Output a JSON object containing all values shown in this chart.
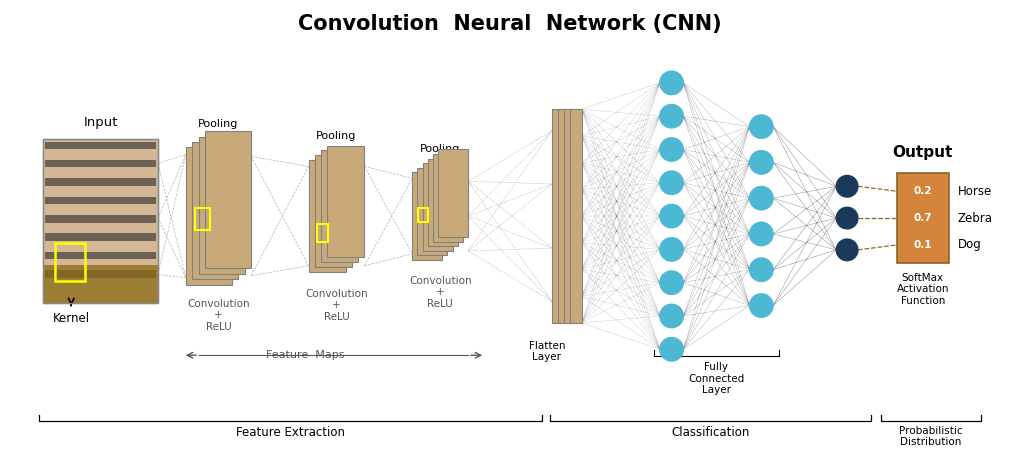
{
  "title": "Convolution  Neural  Network (CNN)",
  "title_fontsize": 15,
  "title_fontweight": "bold",
  "background_color": "#ffffff",
  "tan_color": "#c8a97a",
  "tan_dark": "#a8855a",
  "yellow_color": "#ffff00",
  "cyan_color": "#4db8d4",
  "dark_blue": "#1a3a5c",
  "orange_color": "#d4833a",
  "layer_labels": [
    "Convolution\n+\nReLU",
    "Convolution\n+\nReLU",
    "Convolution\n+\nReLU"
  ],
  "pooling_labels": [
    "Pooling",
    "Pooling",
    "Pooling"
  ],
  "section_labels": [
    "Feature Extraction",
    "Classification",
    "Probabilistic\nDistribution"
  ],
  "feature_maps_label": "Feature  Maps",
  "output_labels": [
    "Horse",
    "Zebra",
    "Dog"
  ],
  "output_values": [
    "0.2",
    "0.7",
    "0.1"
  ],
  "input_label": "Input",
  "kernel_label": "Kernel",
  "flatten_label": "Flatten\nLayer",
  "fully_connected_label": "Fully\nConnected\nLayer",
  "output_label": "Output",
  "softmax_label": "SoftMax\nActivation\nFunction"
}
